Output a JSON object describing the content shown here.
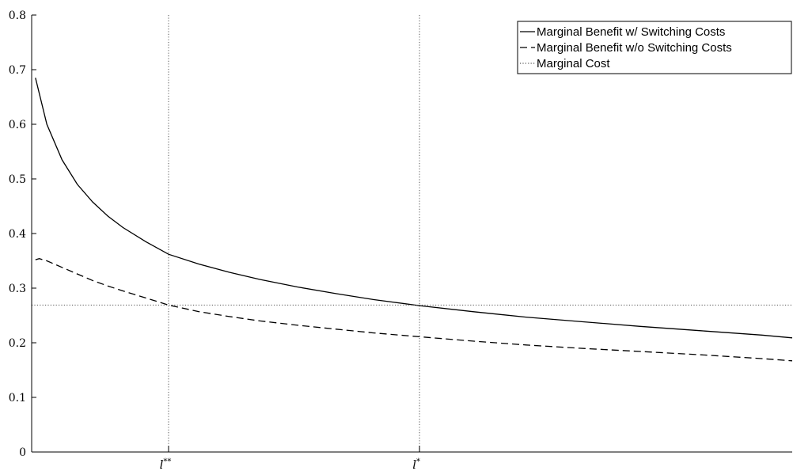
{
  "chart_data": {
    "type": "line",
    "title": "",
    "xlabel": "",
    "ylabel": "",
    "ylim": [
      0,
      0.8
    ],
    "yticks": [
      "0",
      "0.1",
      "0.2",
      "0.3",
      "0.4",
      "0.5",
      "0.6",
      "0.7",
      "0.8"
    ],
    "xlim": [
      0,
      10
    ],
    "xticks": [
      {
        "label": "l**",
        "x": 1.8
      },
      {
        "label": "l*",
        "x": 5.1
      }
    ],
    "grid": false,
    "legend_placement": "top-right",
    "series": [
      {
        "name": "Marginal Benefit w/ Switching Costs",
        "style": "solid",
        "color": "#000000",
        "x": [
          0.05,
          0.2,
          0.4,
          0.6,
          0.8,
          1.0,
          1.2,
          1.5,
          1.8,
          2.2,
          2.6,
          3.0,
          3.5,
          4.0,
          4.5,
          5.1,
          5.8,
          6.5,
          7.2,
          8.0,
          8.8,
          9.6,
          10.0
        ],
        "y": [
          0.685,
          0.6,
          0.535,
          0.49,
          0.458,
          0.432,
          0.411,
          0.385,
          0.362,
          0.344,
          0.329,
          0.316,
          0.302,
          0.29,
          0.279,
          0.268,
          0.257,
          0.247,
          0.239,
          0.23,
          0.222,
          0.214,
          0.209
        ]
      },
      {
        "name": "Marginal Benefit w/o Switching Costs",
        "style": "dashed",
        "color": "#000000",
        "x": [
          0.05,
          0.1,
          0.2,
          0.4,
          0.6,
          0.8,
          1.0,
          1.2,
          1.5,
          1.8,
          2.2,
          2.6,
          3.0,
          3.5,
          4.0,
          4.5,
          5.1,
          5.8,
          6.5,
          7.2,
          8.0,
          8.8,
          9.6,
          10.0
        ],
        "y": [
          0.352,
          0.354,
          0.35,
          0.338,
          0.326,
          0.314,
          0.304,
          0.295,
          0.282,
          0.269,
          0.257,
          0.248,
          0.24,
          0.232,
          0.225,
          0.218,
          0.211,
          0.203,
          0.196,
          0.19,
          0.184,
          0.178,
          0.171,
          0.167
        ]
      },
      {
        "name": "Marginal Cost",
        "style": "dotted",
        "color": "#000000",
        "x": [
          0,
          10
        ],
        "y": [
          0.269,
          0.269
        ]
      }
    ],
    "vertical_lines": [
      {
        "x": 1.8,
        "style": "dotted"
      },
      {
        "x": 5.1,
        "style": "dotted"
      }
    ]
  }
}
